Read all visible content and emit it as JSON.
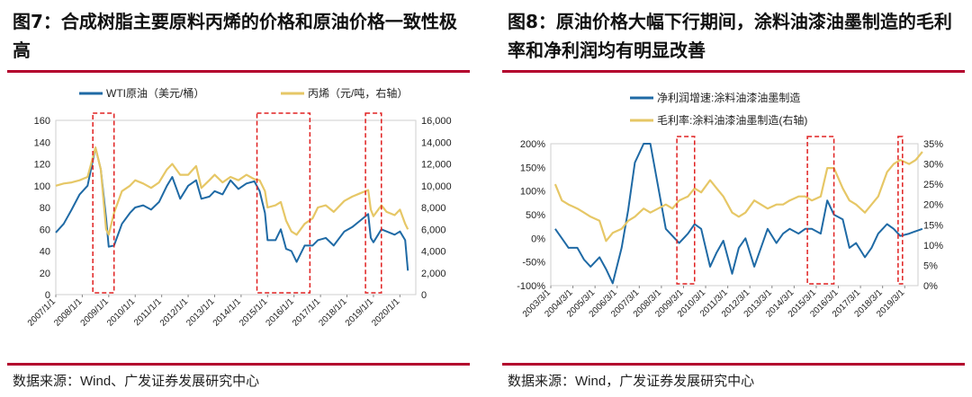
{
  "left": {
    "title": "图7：合成树脂主要原料丙烯的价格和原油价格一致性极高",
    "source": "数据来源：Wind、广发证券发展研究中心",
    "chart_data": {
      "type": "line",
      "legend": [
        {
          "name": "WTI原油（美元/桶）",
          "color": "#1f6aa5"
        },
        {
          "name": "丙烯（元/吨，右轴）",
          "color": "#e6c766"
        }
      ],
      "x_tick_labels": [
        "2007/1/1",
        "2008/1/1",
        "2009/1/1",
        "2010/1/1",
        "2011/1/1",
        "2012/1/1",
        "2013/1/1",
        "2014/1/1",
        "2015/1/1",
        "2016/1/1",
        "2017/1/1",
        "2018/1/1",
        "2019/1/1",
        "2020/1/1"
      ],
      "y_left_ticks": [
        "0",
        "20",
        "40",
        "60",
        "80",
        "100",
        "120",
        "140",
        "160"
      ],
      "y_left_range": [
        0,
        160
      ],
      "y_right_ticks": [
        "0",
        "2,000",
        "4,000",
        "6,000",
        "8,000",
        "10,000",
        "12,000",
        "14,000",
        "16,000"
      ],
      "y_right_range": [
        0,
        16000
      ],
      "highlight_periods": [
        [
          2008.4,
          2009.2
        ],
        [
          2014.6,
          2016.6
        ],
        [
          2018.7,
          2019.3
        ]
      ],
      "series": [
        {
          "name": "WTI原油（美元/桶）",
          "axis": "left",
          "x": [
            2007.0,
            2007.3,
            2007.6,
            2007.9,
            2008.2,
            2008.5,
            2008.7,
            2008.9,
            2009.0,
            2009.2,
            2009.5,
            2009.8,
            2010.0,
            2010.3,
            2010.6,
            2010.9,
            2011.2,
            2011.4,
            2011.7,
            2012.0,
            2012.3,
            2012.5,
            2012.8,
            2013.0,
            2013.3,
            2013.6,
            2013.9,
            2014.2,
            2014.5,
            2014.7,
            2014.9,
            2015.0,
            2015.3,
            2015.5,
            2015.7,
            2015.9,
            2016.1,
            2016.4,
            2016.7,
            2016.9,
            2017.2,
            2017.5,
            2017.9,
            2018.2,
            2018.5,
            2018.8,
            2018.9,
            2019.0,
            2019.3,
            2019.5,
            2019.8,
            2020.0,
            2020.2,
            2020.3
          ],
          "y": [
            57,
            65,
            78,
            92,
            100,
            135,
            115,
            70,
            44,
            45,
            65,
            75,
            80,
            82,
            78,
            85,
            100,
            108,
            88,
            100,
            105,
            88,
            90,
            95,
            92,
            105,
            97,
            102,
            104,
            95,
            75,
            50,
            50,
            60,
            42,
            40,
            30,
            45,
            45,
            50,
            52,
            45,
            58,
            62,
            68,
            74,
            52,
            48,
            60,
            58,
            55,
            58,
            50,
            22
          ]
        },
        {
          "name": "丙烯（元/吨，右轴）",
          "axis": "right",
          "x": [
            2007.0,
            2007.3,
            2007.6,
            2007.9,
            2008.2,
            2008.5,
            2008.7,
            2008.9,
            2009.0,
            2009.2,
            2009.5,
            2009.8,
            2010.0,
            2010.3,
            2010.6,
            2010.9,
            2011.2,
            2011.4,
            2011.7,
            2012.0,
            2012.3,
            2012.5,
            2012.8,
            2013.0,
            2013.3,
            2013.6,
            2013.9,
            2014.2,
            2014.5,
            2014.7,
            2014.9,
            2015.0,
            2015.3,
            2015.5,
            2015.7,
            2015.9,
            2016.1,
            2016.4,
            2016.7,
            2016.9,
            2017.2,
            2017.5,
            2017.9,
            2018.2,
            2018.5,
            2018.8,
            2018.9,
            2019.0,
            2019.3,
            2019.5,
            2019.8,
            2020.0,
            2020.2,
            2020.3
          ],
          "y": [
            10000,
            10200,
            10300,
            10500,
            10800,
            13500,
            11500,
            6000,
            5500,
            7500,
            9500,
            10000,
            10500,
            10200,
            9800,
            10300,
            11500,
            12000,
            11000,
            11000,
            11800,
            9800,
            10500,
            11000,
            10300,
            10800,
            10500,
            11000,
            10600,
            10500,
            9500,
            8000,
            8200,
            8500,
            6800,
            5800,
            5500,
            6500,
            7000,
            8000,
            8200,
            7600,
            8600,
            9000,
            9300,
            9600,
            7800,
            7200,
            8200,
            7600,
            7300,
            7800,
            6500,
            6000
          ]
        }
      ]
    }
  },
  "right": {
    "title": "图8：原油价格大幅下行期间，涂料油漆油墨制造的毛利率和净利润均有明显改善",
    "source": "数据来源：Wind，广发证券发展研究中心",
    "chart_data": {
      "type": "line",
      "legend": [
        {
          "name": "净利润增速:涂料油漆油墨制造",
          "color": "#1f6aa5"
        },
        {
          "name": "毛利率:涂料油漆油墨制造(右轴)",
          "color": "#e6c766"
        }
      ],
      "x_tick_labels": [
        "2003/3/1",
        "2004/3/1",
        "2005/3/1",
        "2006/3/1",
        "2007/3/1",
        "2008/3/1",
        "2009/3/1",
        "2010/3/1",
        "2011/3/1",
        "2012/3/1",
        "2013/3/1",
        "2014/3/1",
        "2015/3/1",
        "2016/3/1",
        "2017/3/1",
        "2018/3/1",
        "2019/3/1"
      ],
      "y_left_ticks": [
        "-100%",
        "-50%",
        "0%",
        "50%",
        "100%",
        "150%",
        "200%"
      ],
      "y_left_range": [
        -100,
        200
      ],
      "y_right_ticks": [
        "0%",
        "5%",
        "10%",
        "15%",
        "20%",
        "25%",
        "30%",
        "35%"
      ],
      "y_right_range": [
        0,
        35
      ],
      "highlight_periods": [
        [
          2008.7,
          2009.5
        ],
        [
          2014.6,
          2015.8
        ],
        [
          2018.7,
          2018.9
        ]
      ],
      "series": [
        {
          "name": "净利润增速:涂料油漆油墨制造",
          "axis": "left",
          "x": [
            2003.2,
            2003.5,
            2003.8,
            2004.2,
            2004.5,
            2004.8,
            2005.2,
            2005.5,
            2005.8,
            2006.2,
            2006.5,
            2006.8,
            2007.2,
            2007.5,
            2008.2,
            2008.5,
            2008.8,
            2009.2,
            2009.5,
            2009.8,
            2010.2,
            2010.5,
            2010.8,
            2011.2,
            2011.5,
            2011.8,
            2012.2,
            2012.5,
            2012.8,
            2013.2,
            2013.5,
            2013.8,
            2014.2,
            2014.5,
            2014.8,
            2015.2,
            2015.5,
            2015.8,
            2016.2,
            2016.5,
            2016.8,
            2017.2,
            2017.5,
            2017.8,
            2018.2,
            2018.5,
            2018.8,
            2019.2,
            2019.5,
            2019.8
          ],
          "y": [
            20,
            0,
            -20,
            -20,
            -45,
            -60,
            -40,
            -65,
            -95,
            -20,
            60,
            160,
            200,
            210,
            20,
            5,
            -10,
            10,
            30,
            20,
            -60,
            -30,
            -5,
            -75,
            -20,
            0,
            -60,
            -20,
            20,
            -10,
            10,
            20,
            10,
            20,
            20,
            10,
            80,
            50,
            40,
            -20,
            -10,
            -40,
            -20,
            10,
            30,
            20,
            5,
            10,
            15,
            20
          ]
        },
        {
          "name": "毛利率:涂料油漆油墨制造(右轴)",
          "axis": "right",
          "x": [
            2003.2,
            2003.5,
            2003.8,
            2004.2,
            2004.5,
            2004.8,
            2005.2,
            2005.5,
            2005.8,
            2006.2,
            2006.5,
            2006.8,
            2007.2,
            2007.5,
            2008.2,
            2008.5,
            2008.8,
            2009.2,
            2009.5,
            2009.8,
            2010.2,
            2010.5,
            2010.8,
            2011.2,
            2011.5,
            2011.8,
            2012.2,
            2012.5,
            2012.8,
            2013.2,
            2013.5,
            2013.8,
            2014.2,
            2014.5,
            2014.8,
            2015.2,
            2015.5,
            2015.8,
            2016.2,
            2016.5,
            2016.8,
            2017.2,
            2017.5,
            2017.8,
            2018.2,
            2018.5,
            2018.8,
            2019.2,
            2019.5,
            2019.8
          ],
          "y": [
            25,
            21,
            20,
            19,
            18,
            17,
            16,
            11,
            13,
            14,
            16,
            17,
            19,
            18,
            20,
            19,
            21,
            22,
            24,
            23,
            26,
            24,
            22,
            18,
            17,
            18,
            21,
            20,
            19,
            20,
            20,
            21,
            22,
            22,
            21,
            22,
            29,
            29,
            24,
            21,
            20,
            18,
            20,
            22,
            28,
            30,
            31,
            30,
            31,
            33
          ]
        }
      ]
    }
  }
}
